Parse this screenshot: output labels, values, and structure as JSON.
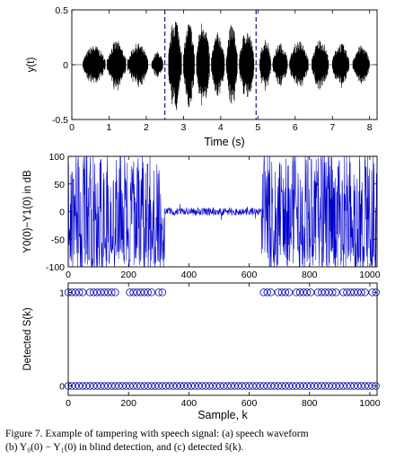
{
  "chart_data": [
    {
      "type": "line",
      "panel": "a",
      "xlabel": "Time (s)",
      "ylabel": "y(t)",
      "xlim": [
        0,
        8.2
      ],
      "ylim": [
        -0.5,
        0.5
      ],
      "xticks": [
        0,
        1,
        2,
        3,
        4,
        5,
        6,
        7,
        8
      ],
      "yticks": [
        -0.5,
        0,
        0.5
      ],
      "series": [
        {
          "color": "#000000",
          "description_values": "speech waveform, bursts between ~0.3 s and ~8.0 s, mostly within ±0.25, peaks near ±0.45 around 2.6–3.6 s"
        }
      ],
      "markers": [
        {
          "x": 2.5,
          "style": "dashed",
          "color": "#00008b"
        },
        {
          "x": 4.95,
          "style": "dashed",
          "color": "#00008b"
        }
      ],
      "segments": [
        [
          0.3,
          0.9,
          0.18
        ],
        [
          0.95,
          1.45,
          0.22
        ],
        [
          1.5,
          2.05,
          0.2
        ],
        [
          2.15,
          2.45,
          0.12
        ],
        [
          2.6,
          2.95,
          0.45
        ],
        [
          3.0,
          3.3,
          0.4
        ],
        [
          3.35,
          3.7,
          0.42
        ],
        [
          3.75,
          4.1,
          0.3
        ],
        [
          4.15,
          4.45,
          0.38
        ],
        [
          4.5,
          4.9,
          0.33
        ],
        [
          5.05,
          5.35,
          0.25
        ],
        [
          5.4,
          5.8,
          0.2
        ],
        [
          5.85,
          6.35,
          0.22
        ],
        [
          6.45,
          6.9,
          0.24
        ],
        [
          7.0,
          7.45,
          0.2
        ],
        [
          7.55,
          8.0,
          0.18
        ]
      ]
    },
    {
      "type": "line",
      "panel": "b",
      "xlabel": "",
      "ylabel": "Y0(0)−Y1(0) in dB",
      "xlim": [
        0,
        1024
      ],
      "ylim": [
        -100,
        100
      ],
      "xticks": [
        0,
        200,
        400,
        600,
        800,
        1000
      ],
      "yticks": [
        -100,
        -50,
        0,
        50,
        100
      ],
      "series": [
        {
          "color": "#0000cc"
        }
      ],
      "regions": [
        {
          "x": [
            0,
            320
          ],
          "level": "large swings between about -100 and 100"
        },
        {
          "x": [
            320,
            640
          ],
          "level": "near 0, within about ±15"
        },
        {
          "x": [
            640,
            1024
          ],
          "level": "large swings between about -100 and 100"
        }
      ]
    },
    {
      "type": "scatter",
      "panel": "c",
      "xlabel": "Sample, k",
      "ylabel": "Detected S(k)",
      "xlim": [
        0,
        1024
      ],
      "ylim": [
        -0.1,
        1.1
      ],
      "xticks": [
        0,
        200,
        400,
        600,
        800,
        1000
      ],
      "yticks": [
        0,
        1
      ],
      "series": [
        {
          "marker": "circle",
          "color": "#0000aa"
        }
      ],
      "ones_x": [
        0,
        12,
        24,
        36,
        48,
        72,
        84,
        96,
        108,
        120,
        132,
        144,
        156,
        204,
        216,
        228,
        240,
        252,
        264,
        276,
        300,
        312,
        648,
        660,
        672,
        696,
        708,
        720,
        732,
        756,
        768,
        780,
        792,
        804,
        828,
        840,
        852,
        864,
        876,
        888,
        912,
        924,
        936,
        948,
        960,
        972,
        984,
        1008,
        1020
      ],
      "step": 12
    }
  ],
  "caption": {
    "line1": "Figure 7.   Example of tampering with speech signal: (a) speech waveform",
    "line2": "(b) Y₀(0) − Y₁(0) in blind detection, and (c) detected ŝ(k)."
  }
}
